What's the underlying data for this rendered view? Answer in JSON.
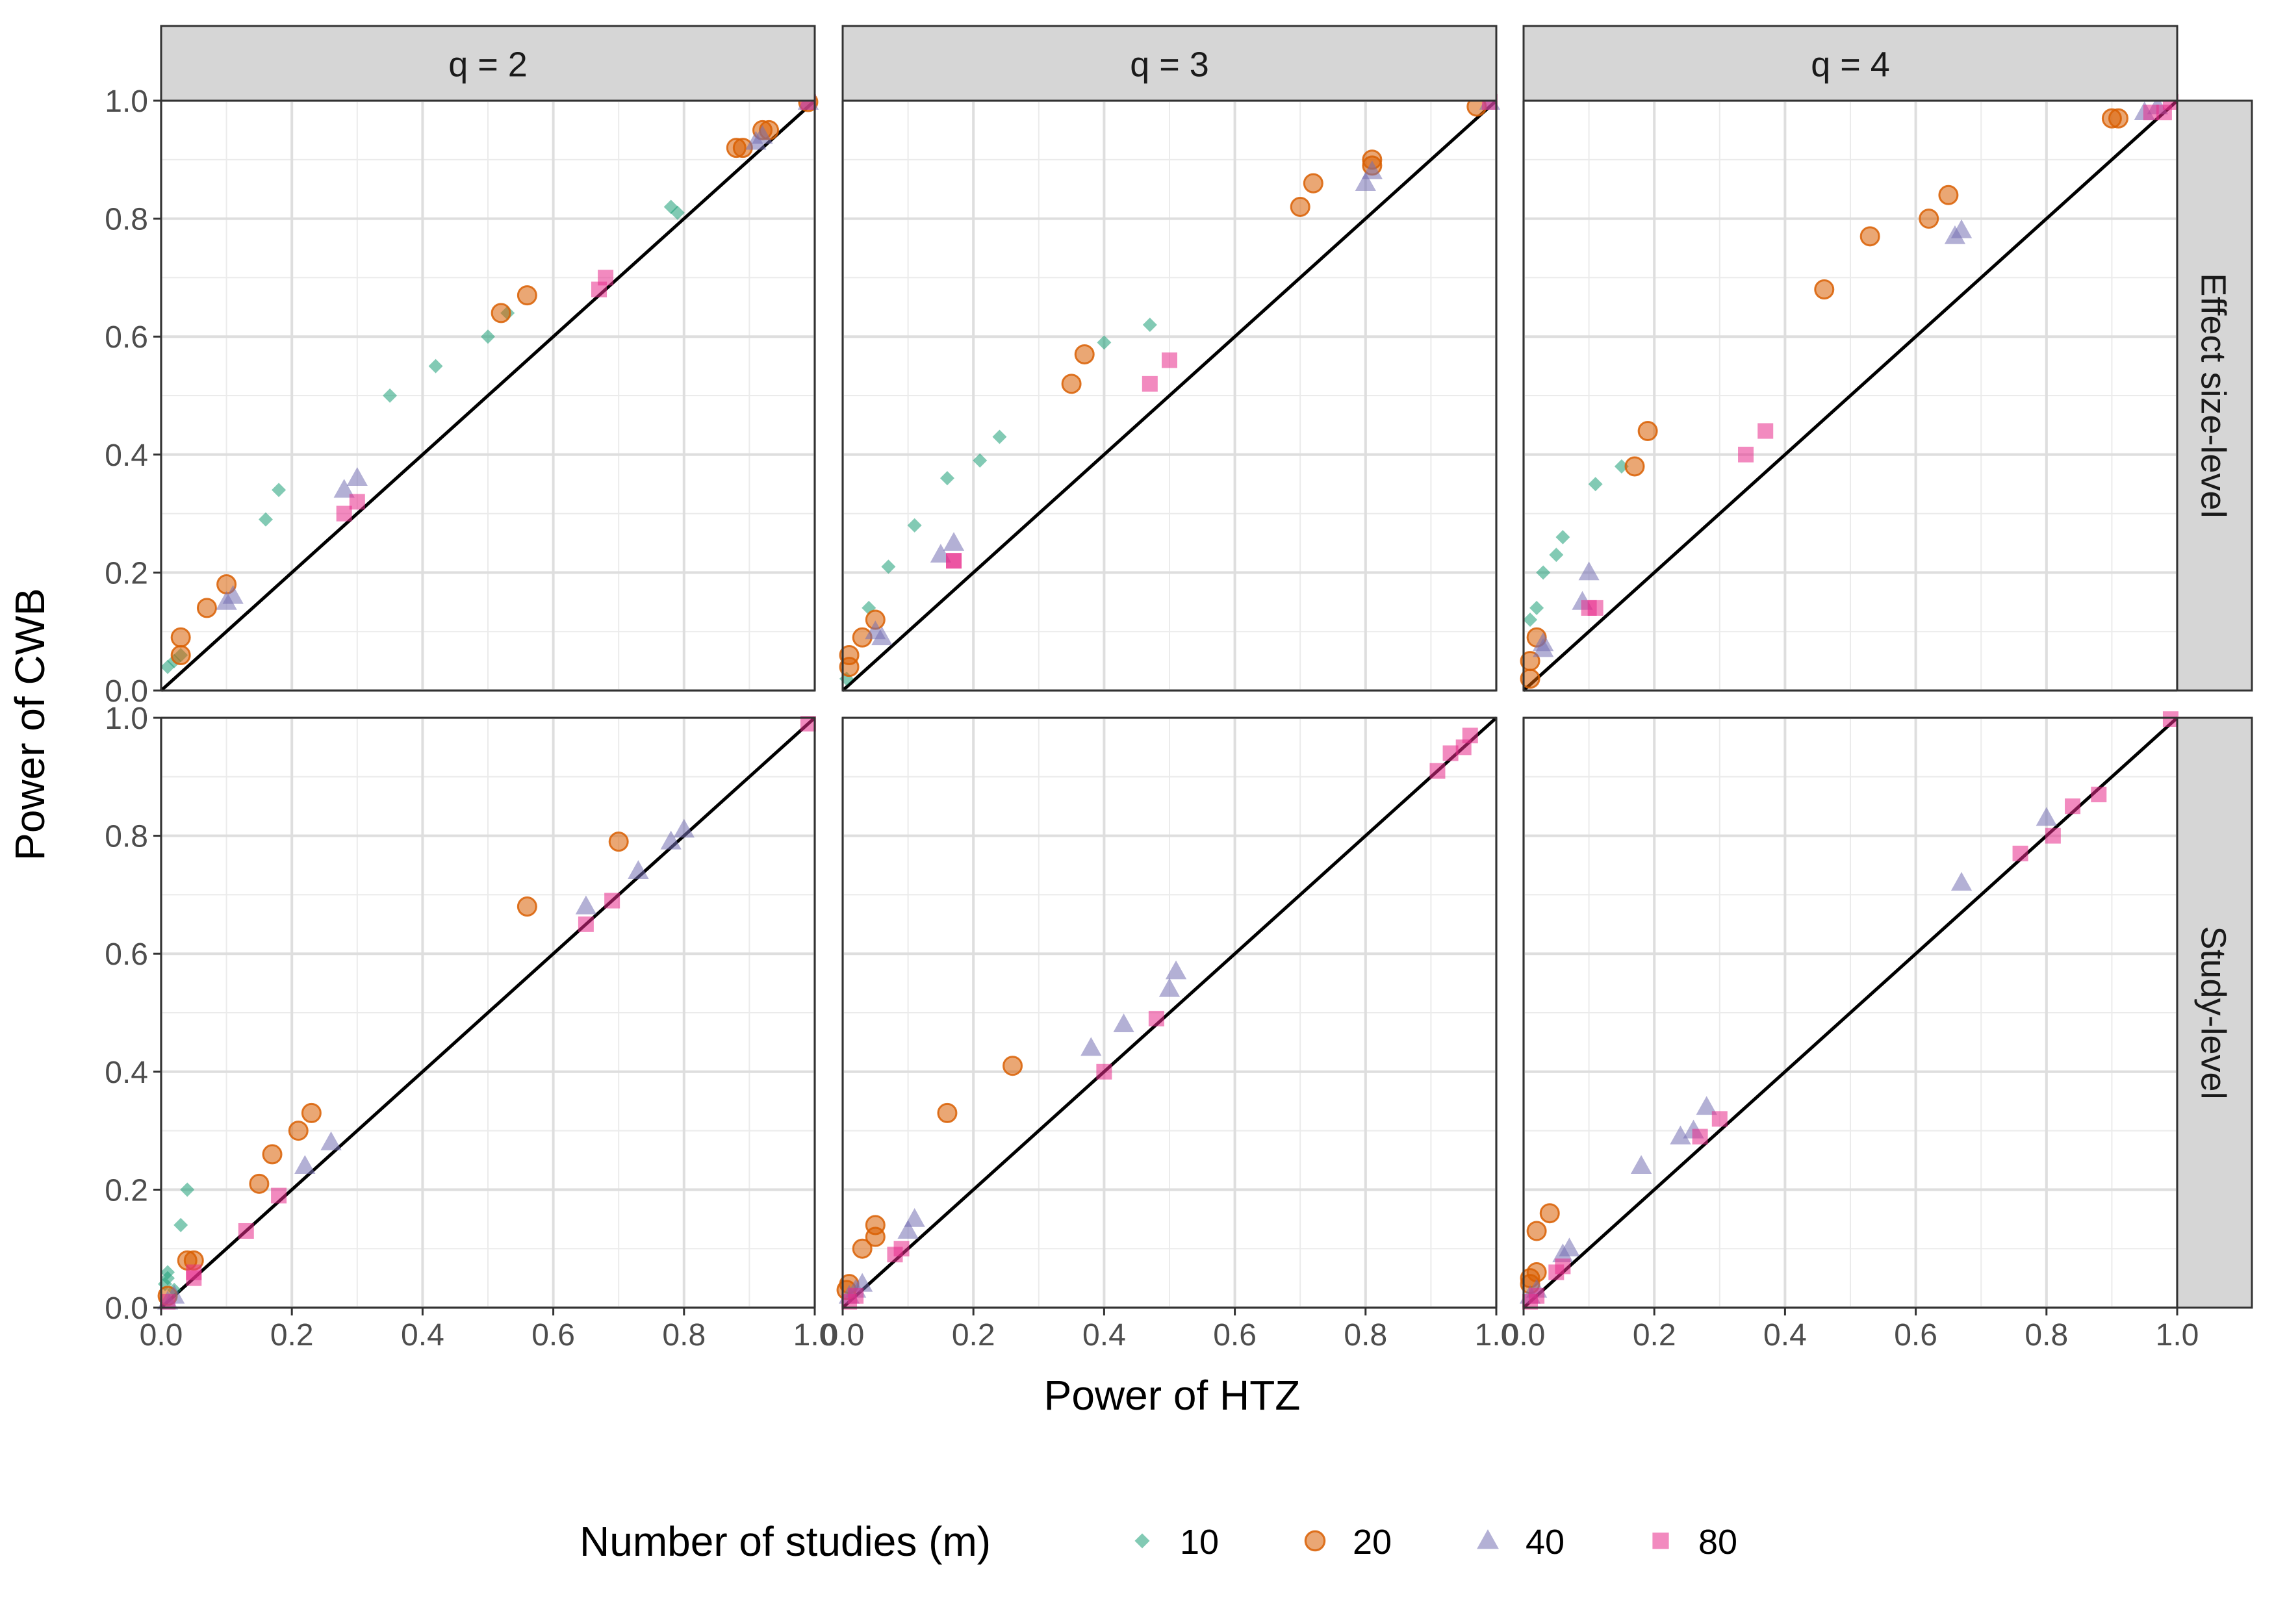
{
  "chart_data": {
    "type": "scatter",
    "xlabel": "Power of HTZ",
    "ylabel": "Power of CWB",
    "xlim": [
      0,
      1
    ],
    "ylim": [
      0,
      1
    ],
    "ticks": [
      "0.0",
      "0.2",
      "0.4",
      "0.6",
      "0.8",
      "1.0"
    ],
    "tick_values": [
      0,
      0.2,
      0.4,
      0.6,
      0.8,
      1.0
    ],
    "grid": true,
    "reference_line": "y = x",
    "facet_cols": [
      "q = 2",
      "q = 3",
      "q = 4"
    ],
    "facet_rows": [
      "Effect size-level",
      "Study-level"
    ],
    "legend": {
      "title": "Number of studies (m)",
      "position": "bottom",
      "items": [
        {
          "label": "10",
          "shape": "diamond",
          "color": "#1B9E77"
        },
        {
          "label": "20",
          "shape": "circle",
          "color": "#D95F02"
        },
        {
          "label": "40",
          "shape": "triangle",
          "color": "#7570B3"
        },
        {
          "label": "80",
          "shape": "square",
          "color": "#E7298A"
        }
      ]
    },
    "panels": [
      {
        "col": "q = 2",
        "row": "Effect size-level",
        "series": [
          {
            "name": "10",
            "points": [
              [
                0.01,
                0.04
              ],
              [
                0.02,
                0.05
              ],
              [
                0.03,
                0.06
              ],
              [
                0.16,
                0.29
              ],
              [
                0.18,
                0.34
              ],
              [
                0.35,
                0.5
              ],
              [
                0.42,
                0.55
              ],
              [
                0.5,
                0.6
              ],
              [
                0.53,
                0.64
              ],
              [
                0.78,
                0.82
              ],
              [
                0.79,
                0.81
              ]
            ]
          },
          {
            "name": "20",
            "points": [
              [
                0.03,
                0.06
              ],
              [
                0.03,
                0.09
              ],
              [
                0.07,
                0.14
              ],
              [
                0.1,
                0.18
              ],
              [
                0.52,
                0.64
              ],
              [
                0.56,
                0.67
              ],
              [
                0.88,
                0.92
              ],
              [
                0.89,
                0.92
              ],
              [
                0.92,
                0.95
              ],
              [
                0.93,
                0.95
              ],
              [
                0.99,
                1.0
              ]
            ]
          },
          {
            "name": "40",
            "points": [
              [
                0.1,
                0.15
              ],
              [
                0.11,
                0.16
              ],
              [
                0.28,
                0.34
              ],
              [
                0.3,
                0.36
              ],
              [
                0.91,
                0.93
              ],
              [
                0.92,
                0.94
              ],
              [
                0.99,
                1.0
              ]
            ]
          },
          {
            "name": "80",
            "points": [
              [
                0.28,
                0.3
              ],
              [
                0.3,
                0.32
              ],
              [
                0.67,
                0.68
              ],
              [
                0.68,
                0.7
              ],
              [
                0.99,
                1.0
              ]
            ]
          }
        ]
      },
      {
        "col": "q = 3",
        "row": "Effect size-level",
        "series": [
          {
            "name": "10",
            "points": [
              [
                0.0,
                0.02
              ],
              [
                0.04,
                0.14
              ],
              [
                0.07,
                0.21
              ],
              [
                0.11,
                0.28
              ],
              [
                0.16,
                0.36
              ],
              [
                0.21,
                0.39
              ],
              [
                0.24,
                0.43
              ],
              [
                0.4,
                0.59
              ],
              [
                0.47,
                0.62
              ]
            ]
          },
          {
            "name": "20",
            "points": [
              [
                0.01,
                0.04
              ],
              [
                0.01,
                0.06
              ],
              [
                0.03,
                0.09
              ],
              [
                0.05,
                0.12
              ],
              [
                0.35,
                0.52
              ],
              [
                0.37,
                0.57
              ],
              [
                0.7,
                0.82
              ],
              [
                0.72,
                0.86
              ],
              [
                0.81,
                0.89
              ],
              [
                0.81,
                0.9
              ],
              [
                0.97,
                0.99
              ]
            ]
          },
          {
            "name": "40",
            "points": [
              [
                0.05,
                0.1
              ],
              [
                0.06,
                0.09
              ],
              [
                0.15,
                0.23
              ],
              [
                0.17,
                0.25
              ],
              [
                0.8,
                0.86
              ],
              [
                0.81,
                0.88
              ],
              [
                0.99,
                1.0
              ]
            ]
          },
          {
            "name": "80",
            "points": [
              [
                0.17,
                0.22
              ],
              [
                0.17,
                0.22
              ],
              [
                0.47,
                0.52
              ],
              [
                0.5,
                0.56
              ],
              [
                0.99,
                1.0
              ]
            ]
          }
        ]
      },
      {
        "col": "q = 4",
        "row": "Effect size-level",
        "series": [
          {
            "name": "10",
            "points": [
              [
                0.01,
                0.12
              ],
              [
                0.02,
                0.14
              ],
              [
                0.03,
                0.2
              ],
              [
                0.05,
                0.23
              ],
              [
                0.06,
                0.26
              ],
              [
                0.11,
                0.35
              ],
              [
                0.15,
                0.38
              ]
            ]
          },
          {
            "name": "20",
            "points": [
              [
                0.01,
                0.02
              ],
              [
                0.01,
                0.05
              ],
              [
                0.02,
                0.09
              ],
              [
                0.17,
                0.38
              ],
              [
                0.19,
                0.44
              ],
              [
                0.46,
                0.68
              ],
              [
                0.53,
                0.77
              ],
              [
                0.62,
                0.8
              ],
              [
                0.65,
                0.84
              ],
              [
                0.9,
                0.97
              ],
              [
                0.91,
                0.97
              ]
            ]
          },
          {
            "name": "40",
            "points": [
              [
                0.03,
                0.07
              ],
              [
                0.03,
                0.08
              ],
              [
                0.09,
                0.15
              ],
              [
                0.1,
                0.2
              ],
              [
                0.66,
                0.77
              ],
              [
                0.67,
                0.78
              ],
              [
                0.95,
                0.98
              ],
              [
                0.97,
                0.99
              ]
            ]
          },
          {
            "name": "80",
            "points": [
              [
                0.1,
                0.14
              ],
              [
                0.11,
                0.14
              ],
              [
                0.34,
                0.4
              ],
              [
                0.37,
                0.44
              ],
              [
                0.96,
                0.98
              ],
              [
                0.98,
                0.98
              ],
              [
                0.99,
                1.0
              ]
            ]
          }
        ]
      },
      {
        "col": "q = 2",
        "row": "Study-level",
        "series": [
          {
            "name": "10",
            "points": [
              [
                0.0,
                0.04
              ],
              [
                0.01,
                0.05
              ],
              [
                0.01,
                0.06
              ],
              [
                0.02,
                0.03
              ],
              [
                0.03,
                0.14
              ],
              [
                0.04,
                0.2
              ]
            ]
          },
          {
            "name": "20",
            "points": [
              [
                0.01,
                0.02
              ],
              [
                0.04,
                0.08
              ],
              [
                0.05,
                0.08
              ],
              [
                0.15,
                0.21
              ],
              [
                0.17,
                0.26
              ],
              [
                0.21,
                0.3
              ],
              [
                0.23,
                0.33
              ],
              [
                0.56,
                0.68
              ],
              [
                0.7,
                0.79
              ]
            ]
          },
          {
            "name": "40",
            "points": [
              [
                0.01,
                0.01
              ],
              [
                0.02,
                0.02
              ],
              [
                0.22,
                0.24
              ],
              [
                0.26,
                0.28
              ],
              [
                0.65,
                0.68
              ],
              [
                0.73,
                0.74
              ],
              [
                0.78,
                0.79
              ],
              [
                0.8,
                0.81
              ]
            ]
          },
          {
            "name": "80",
            "points": [
              [
                0.01,
                0.01
              ],
              [
                0.05,
                0.05
              ],
              [
                0.05,
                0.06
              ],
              [
                0.13,
                0.13
              ],
              [
                0.18,
                0.19
              ],
              [
                0.65,
                0.65
              ],
              [
                0.69,
                0.69
              ],
              [
                0.99,
                0.99
              ]
            ]
          }
        ]
      },
      {
        "col": "q = 3",
        "row": "Study-level",
        "series": [
          {
            "name": "20",
            "points": [
              [
                0.0,
                0.03
              ],
              [
                0.01,
                0.04
              ],
              [
                0.03,
                0.1
              ],
              [
                0.05,
                0.12
              ],
              [
                0.05,
                0.14
              ],
              [
                0.16,
                0.33
              ],
              [
                0.26,
                0.41
              ]
            ]
          },
          {
            "name": "40",
            "points": [
              [
                0.01,
                0.02
              ],
              [
                0.02,
                0.03
              ],
              [
                0.03,
                0.04
              ],
              [
                0.1,
                0.13
              ],
              [
                0.11,
                0.15
              ],
              [
                0.38,
                0.44
              ],
              [
                0.43,
                0.48
              ],
              [
                0.5,
                0.54
              ],
              [
                0.51,
                0.57
              ]
            ]
          },
          {
            "name": "80",
            "points": [
              [
                0.01,
                0.01
              ],
              [
                0.02,
                0.02
              ],
              [
                0.08,
                0.09
              ],
              [
                0.09,
                0.1
              ],
              [
                0.4,
                0.4
              ],
              [
                0.48,
                0.49
              ],
              [
                0.91,
                0.91
              ],
              [
                0.93,
                0.94
              ],
              [
                0.95,
                0.95
              ],
              [
                0.96,
                0.97
              ]
            ]
          }
        ]
      },
      {
        "col": "q = 4",
        "row": "Study-level",
        "series": [
          {
            "name": "20",
            "points": [
              [
                0.01,
                0.04
              ],
              [
                0.01,
                0.05
              ],
              [
                0.02,
                0.06
              ],
              [
                0.02,
                0.13
              ],
              [
                0.04,
                0.16
              ]
            ]
          },
          {
            "name": "40",
            "points": [
              [
                0.01,
                0.02
              ],
              [
                0.02,
                0.03
              ],
              [
                0.06,
                0.09
              ],
              [
                0.07,
                0.1
              ],
              [
                0.18,
                0.24
              ],
              [
                0.24,
                0.29
              ],
              [
                0.26,
                0.3
              ],
              [
                0.28,
                0.34
              ],
              [
                0.67,
                0.72
              ],
              [
                0.8,
                0.83
              ]
            ]
          },
          {
            "name": "80",
            "points": [
              [
                0.01,
                0.01
              ],
              [
                0.02,
                0.02
              ],
              [
                0.05,
                0.06
              ],
              [
                0.06,
                0.07
              ],
              [
                0.27,
                0.29
              ],
              [
                0.3,
                0.32
              ],
              [
                0.76,
                0.77
              ],
              [
                0.81,
                0.8
              ],
              [
                0.84,
                0.85
              ],
              [
                0.88,
                0.87
              ],
              [
                0.99,
                1.0
              ]
            ]
          }
        ]
      }
    ]
  }
}
